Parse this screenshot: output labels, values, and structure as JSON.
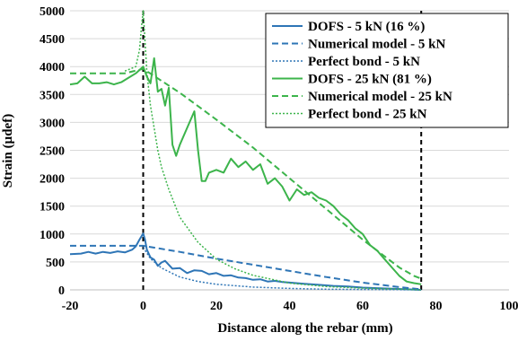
{
  "chart_data": {
    "type": "line",
    "xlabel": "Distance along the rebar (mm)",
    "ylabel": "Strain (µdef)",
    "xlim": [
      -20,
      100
    ],
    "ylim": [
      0,
      5000
    ],
    "x_ticks": [
      -20,
      0,
      20,
      40,
      60,
      80,
      100
    ],
    "y_ticks": [
      0,
      500,
      1000,
      1500,
      2000,
      2500,
      3000,
      3500,
      4000,
      4500,
      5000
    ],
    "grid": "horizontal",
    "legend_position": "top-right",
    "vertical_markers": [
      0,
      76
    ],
    "colors": {
      "blue": "#2e75b6",
      "green": "#3cb44b",
      "marker": "#000000"
    },
    "series": [
      {
        "name": "DOFS - 5 kN (16 %)",
        "color": "#2e75b6",
        "style": "solid",
        "x": [
          -20,
          -17,
          -15,
          -13,
          -11,
          -9,
          -7,
          -5,
          -3,
          -2,
          -1,
          0,
          0.5,
          1,
          2,
          3,
          4,
          5,
          6,
          8,
          10,
          12,
          14,
          16,
          18,
          20,
          22,
          24,
          26,
          28,
          30,
          32,
          34,
          36,
          38,
          40,
          44,
          48,
          52,
          56,
          60,
          64,
          68,
          72,
          76
        ],
        "y": [
          640,
          650,
          680,
          650,
          680,
          660,
          690,
          670,
          720,
          780,
          900,
          1010,
          900,
          720,
          580,
          540,
          430,
          490,
          520,
          380,
          390,
          300,
          350,
          340,
          280,
          300,
          250,
          260,
          220,
          210,
          180,
          190,
          150,
          160,
          140,
          130,
          110,
          90,
          70,
          60,
          40,
          30,
          20,
          10,
          0
        ]
      },
      {
        "name": "Numerical model - 5 kN",
        "color": "#2e75b6",
        "style": "dashed",
        "x": [
          -20,
          0,
          10,
          20,
          30,
          40,
          50,
          60,
          70,
          76
        ],
        "y": [
          790,
          790,
          680,
          560,
          450,
          340,
          230,
          130,
          50,
          10
        ]
      },
      {
        "name": "Perfect bond - 5 kN",
        "color": "#2e75b6",
        "style": "dotted",
        "x": [
          0,
          2,
          5,
          10,
          15,
          20,
          30,
          40,
          50,
          60,
          70,
          76
        ],
        "y": [
          760,
          560,
          390,
          230,
          150,
          100,
          50,
          25,
          12,
          6,
          3,
          0
        ]
      },
      {
        "name": "DOFS - 25 kN (81 %)",
        "color": "#3cb44b",
        "style": "solid",
        "x": [
          -20,
          -18,
          -16,
          -14,
          -12,
          -10,
          -8,
          -6,
          -4,
          -2,
          0,
          1,
          2,
          3,
          4,
          5,
          6,
          7,
          8,
          9,
          10,
          12,
          14,
          15,
          16,
          17,
          18,
          20,
          22,
          24,
          26,
          28,
          30,
          32,
          34,
          36,
          38,
          40,
          42,
          44,
          46,
          48,
          50,
          52,
          54,
          56,
          58,
          60,
          62,
          64,
          66,
          68,
          70,
          72,
          74,
          76
        ],
        "y": [
          3680,
          3700,
          3820,
          3700,
          3700,
          3720,
          3680,
          3720,
          3800,
          3880,
          4000,
          3820,
          3700,
          4150,
          3550,
          3600,
          3300,
          3620,
          2600,
          2400,
          2600,
          2900,
          3200,
          2500,
          1950,
          1950,
          2100,
          2150,
          2100,
          2350,
          2200,
          2300,
          2150,
          2250,
          1900,
          2000,
          1850,
          1600,
          1800,
          1700,
          1750,
          1650,
          1600,
          1500,
          1350,
          1250,
          1100,
          1000,
          800,
          700,
          550,
          400,
          250,
          150,
          120,
          100
        ]
      },
      {
        "name": "Numerical model - 25 kN",
        "color": "#3cb44b",
        "style": "dashed",
        "x": [
          -20,
          -5,
          0,
          10,
          20,
          30,
          40,
          50,
          60,
          70,
          74,
          76
        ],
        "y": [
          3880,
          3880,
          3960,
          3530,
          3050,
          2550,
          2000,
          1450,
          900,
          400,
          250,
          200
        ]
      },
      {
        "name": "Perfect bond - 25 kN",
        "color": "#3cb44b",
        "style": "dotted",
        "x": [
          -5,
          -2,
          -1,
          -0.5,
          0,
          1,
          2,
          3,
          4,
          5,
          7,
          10,
          15,
          20,
          25,
          30,
          40,
          50,
          60,
          70,
          76
        ],
        "y": [
          3920,
          4000,
          4300,
          4700,
          5000,
          3900,
          3300,
          2900,
          2500,
          2200,
          1800,
          1300,
          850,
          550,
          380,
          260,
          120,
          60,
          30,
          15,
          0
        ]
      }
    ]
  }
}
